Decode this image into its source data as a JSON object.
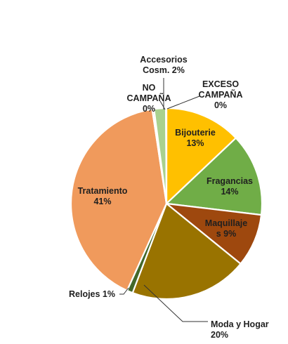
{
  "chart_data": {
    "type": "pie",
    "start": "top",
    "direction": "clockwise",
    "slices": [
      {
        "name": "Bijouterie",
        "value": 13,
        "color": "#FFC000",
        "label_lines": [
          "Bijouterie",
          "13%"
        ]
      },
      {
        "name": "Fragancias",
        "value": 14,
        "color": "#70AD47",
        "label_lines": [
          "Fragancias",
          "14%"
        ]
      },
      {
        "name": "Maquillajes",
        "value": 9,
        "color": "#9E480E",
        "label_lines": [
          "Maquillaje",
          "s 9%"
        ]
      },
      {
        "name": "Moda y Hogar",
        "value": 20,
        "color": "#997300",
        "label_lines": [
          "Moda y Hogar",
          "20%"
        ]
      },
      {
        "name": "Relojes",
        "value": 1,
        "color": "#43682B",
        "label_lines": [
          "Relojes 1%"
        ]
      },
      {
        "name": "Tratamiento",
        "value": 41,
        "color": "#F09A5C",
        "label_lines": [
          "Tratamiento",
          "41%"
        ]
      },
      {
        "name": "NO CAMPAÑA",
        "value": 0.3,
        "color": "#ED7D31",
        "label_lines": [
          "NO",
          "CAMPAÑA",
          "0%"
        ]
      },
      {
        "name": "Accesorios Cosm.",
        "value": 2,
        "color": "#A9D18E",
        "label_lines": [
          "Accesorios",
          "Cosm. 2%"
        ]
      },
      {
        "name": "EXCESO CAMPAÑA",
        "value": 0.1,
        "color": "#5B9BD5",
        "label_lines": [
          "EXCESO",
          "CAMPAÑA",
          "0%"
        ]
      }
    ]
  }
}
